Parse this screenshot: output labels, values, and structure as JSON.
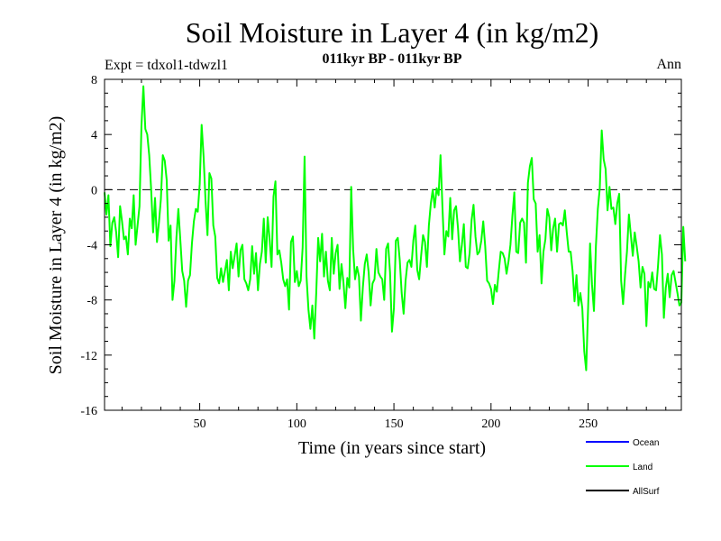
{
  "chart_data": {
    "type": "line",
    "title": "Soil Moisture in Layer 4 (in kg/m2)",
    "subtitle": "011kyr BP - 011kyr BP",
    "expt_label": "Expt = tdxol1-tdwzl1",
    "season_label": "Ann",
    "xlabel": "Time (in years since start)",
    "ylabel": "Soil Moisture in Layer 4 (in kg/m2)",
    "xlim": [
      1,
      298
    ],
    "ylim": [
      -16,
      8
    ],
    "xticks": [
      50,
      100,
      150,
      200,
      250
    ],
    "yticks": [
      8,
      4,
      0,
      -4,
      -8,
      -12,
      -16
    ],
    "reference_line": 0,
    "legend": [
      {
        "name": "Ocean",
        "color": "#0000ff"
      },
      {
        "name": "Land",
        "color": "#00ff00"
      },
      {
        "name": "AllSurf",
        "color": "#000000"
      }
    ],
    "series": [
      {
        "name": "Land",
        "color": "#00ff00",
        "x_start": 1,
        "x_step": 1,
        "values": [
          -0.2,
          -1.8,
          -0.4,
          -4.1,
          -2.4,
          -2.0,
          -3.1,
          -4.9,
          -1.2,
          -2.3,
          -3.6,
          -3.4,
          -4.7,
          -2.1,
          -2.8,
          -0.4,
          -4.0,
          -2.6,
          -1.2,
          4.6,
          7.5,
          4.4,
          4.0,
          2.5,
          0.0,
          -3.1,
          -0.6,
          -3.8,
          -2.4,
          -0.7,
          2.5,
          2.1,
          0.7,
          -3.7,
          -2.6,
          -8.0,
          -6.6,
          -3.5,
          -1.4,
          -3.6,
          -5.9,
          -6.6,
          -8.5,
          -6.6,
          -6.2,
          -3.9,
          -2.3,
          -1.4,
          -1.6,
          0.4,
          4.7,
          2.4,
          -0.8,
          -3.3,
          1.2,
          0.8,
          -2.6,
          -3.4,
          -6.4,
          -6.8,
          -5.7,
          -6.7,
          -5.9,
          -5.1,
          -7.3,
          -4.5,
          -5.7,
          -4.8,
          -3.9,
          -6.3,
          -4.4,
          -4.0,
          -6.5,
          -6.8,
          -7.3,
          -6.5,
          -4.1,
          -6.1,
          -4.6,
          -7.3,
          -5.4,
          -4.5,
          -2.1,
          -5.3,
          -2.0,
          -3.6,
          -5.6,
          -0.5,
          0.6,
          -4.7,
          -4.4,
          -5.3,
          -6.5,
          -7.0,
          -6.5,
          -8.7,
          -3.8,
          -3.4,
          -6.7,
          -5.9,
          -7.0,
          -6.6,
          -4.2,
          2.4,
          -6.3,
          -8.7,
          -10.1,
          -8.4,
          -10.8,
          -7.5,
          -3.5,
          -5.2,
          -3.2,
          -6.3,
          -4.5,
          -6.6,
          -7.3,
          -3.5,
          -6.1,
          -4.6,
          -4.0,
          -7.2,
          -5.4,
          -6.7,
          -8.6,
          -6.4,
          -7.1,
          0.2,
          -4.3,
          -6.5,
          -5.6,
          -6.3,
          -9.5,
          -7.1,
          -5.4,
          -4.7,
          -6.0,
          -8.4,
          -6.8,
          -6.5,
          -4.3,
          -6.0,
          -6.3,
          -6.5,
          -8.0,
          -4.3,
          -3.9,
          -6.0,
          -10.3,
          -8.6,
          -3.7,
          -3.5,
          -5.1,
          -7.5,
          -9.0,
          -6.6,
          -5.3,
          -5.1,
          -5.6,
          -3.7,
          -2.6,
          -5.8,
          -6.5,
          -4.8,
          -3.3,
          -3.8,
          -5.6,
          -2.6,
          -1.0,
          0.0,
          -1.3,
          0.1,
          -0.4,
          2.5,
          -1.3,
          -4.7,
          -3.0,
          -3.4,
          -0.6,
          -3.6,
          -1.5,
          -1.2,
          -2.8,
          -5.2,
          -4.0,
          -2.5,
          -5.6,
          -5.7,
          -4.6,
          -2.2,
          -1.1,
          -3.4,
          -4.7,
          -4.5,
          -3.7,
          -2.3,
          -4.1,
          -6.6,
          -6.8,
          -7.2,
          -8.3,
          -6.9,
          -7.4,
          -5.9,
          -4.5,
          -4.6,
          -5.0,
          -6.1,
          -5.2,
          -4.0,
          -1.9,
          -0.2,
          -4.5,
          -4.6,
          -2.4,
          -2.1,
          -2.4,
          -5.3,
          0.5,
          1.7,
          2.3,
          -0.7,
          -1.0,
          -4.5,
          -3.3,
          -6.8,
          -4.5,
          -3.6,
          -1.4,
          -2.0,
          -4.4,
          -2.8,
          -2.1,
          -4.5,
          -2.5,
          -2.4,
          -2.6,
          -1.5,
          -3.1,
          -4.5,
          -4.5,
          -5.9,
          -8.1,
          -6.2,
          -8.4,
          -7.5,
          -8.6,
          -11.7,
          -13.1,
          -8.5,
          -3.9,
          -6.9,
          -8.8,
          -4.1,
          -1.4,
          0.1,
          4.3,
          2.2,
          1.5,
          -1.5,
          0.2,
          -1.4,
          -1.3,
          -2.5,
          -1.0,
          -0.3,
          -6.6,
          -8.3,
          -6.2,
          -4.5,
          -1.8,
          -3.3,
          -4.8,
          -3.1,
          -4.1,
          -5.2,
          -7.1,
          -5.6,
          -6.1,
          -9.9,
          -6.7,
          -7.1,
          -6.0,
          -7.2,
          -7.3,
          -5.5,
          -3.3,
          -4.7,
          -9.3,
          -7.1,
          -6.1,
          -7.8,
          -6.2,
          -5.9,
          -6.7,
          -7.5,
          -8.4,
          -8.2,
          -2.7,
          -5.2
        ]
      }
    ]
  }
}
